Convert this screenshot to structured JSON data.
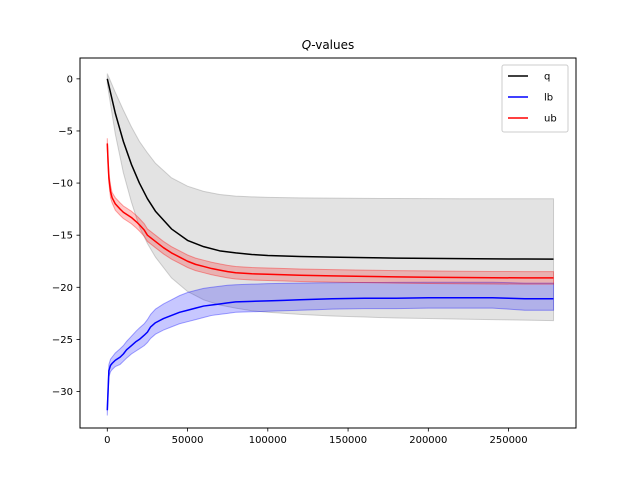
{
  "chart_data": {
    "type": "line",
    "title_italic": "Q",
    "title_rest": "-values",
    "xlim": [
      -17000,
      292000
    ],
    "ylim": [
      -33.5,
      2.0
    ],
    "xticks": [
      0,
      50000,
      100000,
      150000,
      200000,
      250000
    ],
    "xtick_labels": [
      "0",
      "50000",
      "100000",
      "150000",
      "200000",
      "250000"
    ],
    "yticks": [
      0,
      -5,
      -10,
      -15,
      -20,
      -25,
      -30
    ],
    "ytick_labels": [
      "0",
      "−5",
      "−10",
      "−15",
      "−20",
      "−25",
      "−30"
    ],
    "legend_position": "top-right",
    "series": [
      {
        "name": "q",
        "color": "#000000",
        "band_color": "#808080",
        "x": [
          0,
          5000,
          10000,
          15000,
          20000,
          25000,
          30000,
          40000,
          50000,
          60000,
          70000,
          80000,
          90000,
          100000,
          120000,
          140000,
          160000,
          180000,
          200000,
          220000,
          240000,
          260000,
          278000
        ],
        "y": [
          0,
          -3.3,
          -6.0,
          -8.2,
          -10.0,
          -11.5,
          -12.7,
          -14.4,
          -15.5,
          -16.1,
          -16.5,
          -16.7,
          -16.85,
          -16.95,
          -17.05,
          -17.1,
          -17.15,
          -17.2,
          -17.22,
          -17.25,
          -17.27,
          -17.29,
          -17.3
        ],
        "upper": [
          0.5,
          -1.3,
          -3.0,
          -4.6,
          -6.0,
          -7.1,
          -8.1,
          -9.5,
          -10.3,
          -10.8,
          -11.1,
          -11.25,
          -11.32,
          -11.37,
          -11.42,
          -11.45,
          -11.47,
          -11.48,
          -11.49,
          -11.5,
          -11.5,
          -11.5,
          -11.5
        ],
        "lower": [
          -0.5,
          -5.3,
          -9.0,
          -11.8,
          -14.2,
          -15.8,
          -17.1,
          -19.1,
          -20.4,
          -21.2,
          -21.7,
          -22.0,
          -22.25,
          -22.4,
          -22.6,
          -22.75,
          -22.85,
          -22.95,
          -23.0,
          -23.05,
          -23.1,
          -23.15,
          -23.2
        ]
      },
      {
        "name": "lb",
        "color": "#0000ff",
        "band_color": "#0000ff",
        "x": [
          0,
          1000,
          2000,
          3000,
          5000,
          8000,
          10000,
          12000,
          15000,
          18000,
          20000,
          23000,
          25000,
          27000,
          30000,
          35000,
          40000,
          45000,
          50000,
          55000,
          60000,
          65000,
          70000,
          75000,
          80000,
          90000,
          100000,
          110000,
          120000,
          130000,
          140000,
          160000,
          180000,
          200000,
          220000,
          240000,
          250000,
          260000,
          278000
        ],
        "y": [
          -31.8,
          -28.0,
          -27.5,
          -27.3,
          -27.0,
          -26.7,
          -26.4,
          -26.0,
          -25.6,
          -25.2,
          -25.0,
          -24.6,
          -24.3,
          -23.8,
          -23.4,
          -23.0,
          -22.7,
          -22.4,
          -22.2,
          -22.0,
          -21.8,
          -21.7,
          -21.6,
          -21.5,
          -21.4,
          -21.35,
          -21.3,
          -21.25,
          -21.2,
          -21.15,
          -21.1,
          -21.05,
          -21.05,
          -21.0,
          -21.0,
          -21.0,
          -21.05,
          -21.1,
          -21.1
        ],
        "upper": [
          -31.3,
          -27.4,
          -26.9,
          -26.7,
          -26.3,
          -25.9,
          -25.6,
          -25.2,
          -24.7,
          -24.2,
          -23.9,
          -23.5,
          -23.1,
          -22.6,
          -22.1,
          -21.6,
          -21.2,
          -20.8,
          -20.5,
          -20.3,
          -20.1,
          -20.0,
          -19.9,
          -19.8,
          -19.75,
          -19.7,
          -19.65,
          -19.62,
          -19.6,
          -19.58,
          -19.56,
          -19.54,
          -19.53,
          -19.52,
          -19.52,
          -19.52,
          -19.55,
          -19.6,
          -19.6
        ],
        "lower": [
          -32.3,
          -28.6,
          -28.1,
          -27.9,
          -27.6,
          -27.4,
          -27.1,
          -26.8,
          -26.4,
          -26.1,
          -25.9,
          -25.6,
          -25.3,
          -24.9,
          -24.5,
          -24.1,
          -23.8,
          -23.5,
          -23.3,
          -23.1,
          -22.9,
          -22.7,
          -22.6,
          -22.5,
          -22.4,
          -22.35,
          -22.3,
          -22.25,
          -22.2,
          -22.15,
          -22.1,
          -22.05,
          -22.05,
          -22.0,
          -22.0,
          -22.0,
          -22.1,
          -22.2,
          -22.2
        ]
      },
      {
        "name": "ub",
        "color": "#ff0000",
        "band_color": "#ff0000",
        "x": [
          0,
          500,
          1000,
          2000,
          3000,
          5000,
          8000,
          10000,
          13000,
          15000,
          18000,
          20000,
          23000,
          25000,
          30000,
          35000,
          40000,
          45000,
          50000,
          55000,
          60000,
          65000,
          70000,
          75000,
          80000,
          90000,
          100000,
          120000,
          140000,
          160000,
          180000,
          200000,
          220000,
          240000,
          260000,
          278000
        ],
        "y": [
          -6.2,
          -8.0,
          -9.5,
          -10.8,
          -11.4,
          -12.0,
          -12.5,
          -12.8,
          -13.1,
          -13.3,
          -13.7,
          -14.0,
          -14.5,
          -15.0,
          -15.6,
          -16.2,
          -16.7,
          -17.1,
          -17.5,
          -17.8,
          -18.0,
          -18.2,
          -18.35,
          -18.5,
          -18.6,
          -18.7,
          -18.75,
          -18.85,
          -18.9,
          -18.95,
          -19.0,
          -19.03,
          -19.06,
          -19.08,
          -19.1,
          -19.1
        ],
        "upper": [
          -5.7,
          -7.5,
          -9.0,
          -10.2,
          -10.9,
          -11.4,
          -11.9,
          -12.2,
          -12.5,
          -12.7,
          -13.1,
          -13.4,
          -13.9,
          -14.4,
          -15.0,
          -15.6,
          -16.1,
          -16.5,
          -16.9,
          -17.2,
          -17.4,
          -17.6,
          -17.75,
          -17.9,
          -18.0,
          -18.1,
          -18.15,
          -18.25,
          -18.3,
          -18.35,
          -18.4,
          -18.43,
          -18.46,
          -18.48,
          -18.5,
          -18.5
        ],
        "lower": [
          -6.7,
          -8.5,
          -10.0,
          -11.4,
          -11.9,
          -12.6,
          -13.1,
          -13.4,
          -13.7,
          -13.9,
          -14.3,
          -14.6,
          -15.1,
          -15.6,
          -16.2,
          -16.8,
          -17.3,
          -17.7,
          -18.1,
          -18.4,
          -18.6,
          -18.8,
          -18.95,
          -19.1,
          -19.2,
          -19.3,
          -19.35,
          -19.45,
          -19.5,
          -19.55,
          -19.6,
          -19.63,
          -19.66,
          -19.68,
          -19.7,
          -19.7
        ]
      }
    ]
  }
}
